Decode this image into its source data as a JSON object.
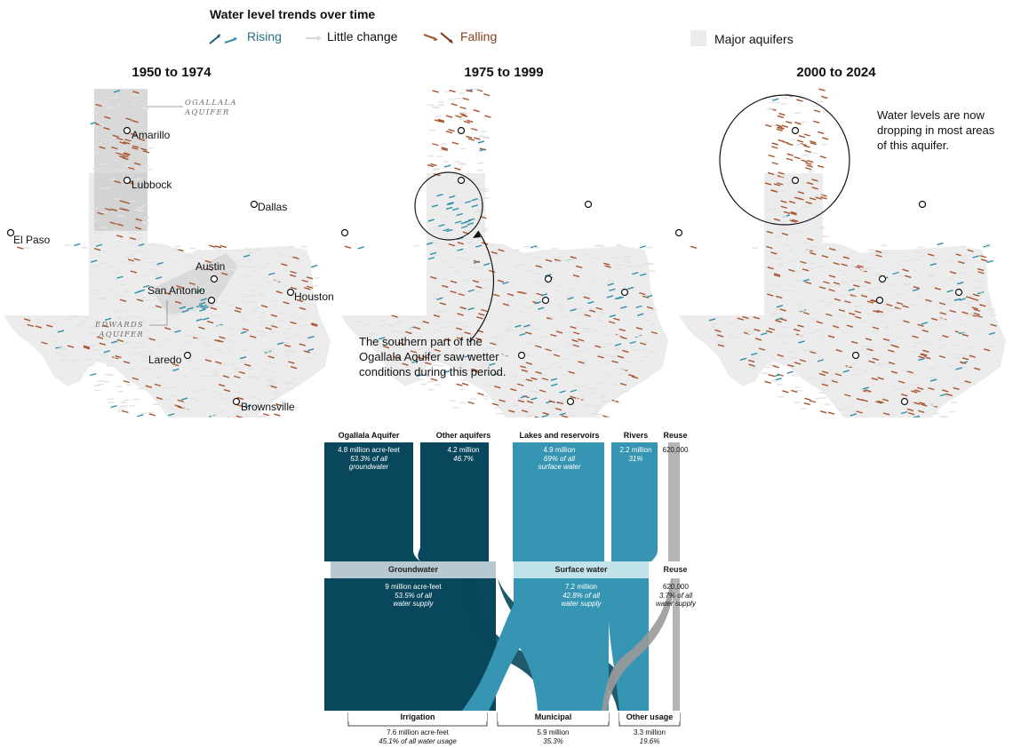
{
  "legend": {
    "title": "Water level trends over time",
    "rising": "Rising",
    "little_change": "Little change",
    "falling": "Falling",
    "major_aquifers": "Major aquifers",
    "colors": {
      "rising": "#2f8fa8",
      "rising_dark": "#1d5f74",
      "falling": "#a9552f",
      "falling_dark": "#7a3519",
      "little_change": "#e3e3e3",
      "aquifer": "#ececec"
    }
  },
  "maps": [
    {
      "title": "1950 to 1974"
    },
    {
      "title": "1975 to 1999"
    },
    {
      "title": "2000 to 2024"
    }
  ],
  "cities": {
    "amarillo": "Amarillo",
    "lubbock": "Lubbock",
    "dallas": "Dallas",
    "el_paso": "El Paso",
    "austin": "Austin",
    "san_antonio": "San Antonio",
    "houston": "Houston",
    "laredo": "Laredo",
    "brownsville": "Brownsville"
  },
  "aquifer_labels": {
    "ogallala_line1": "OGALLALA",
    "ogallala_line2": "AQUIFER",
    "edwards_line1": "EDWARDS",
    "edwards_line2": "AQUIFER"
  },
  "annotations": {
    "southern_ogallala": "The southern part of the Ogallala Aquifer saw wetter conditions during this period.",
    "dropping": "Water levels are now dropping in most areas of this aquifer."
  },
  "sankey": {
    "sources": [
      {
        "name": "Ogallala Aquifer",
        "line1": "4.8 million acre-feet",
        "line2": "53.3% of all",
        "line3": "groundwater"
      },
      {
        "name": "Other aquifers",
        "line1": "4.2 million",
        "line2": "46.7%"
      },
      {
        "name": "Lakes and reservoirs",
        "line1": "4.9 million",
        "line2": "69% of all",
        "line3": "surface water"
      },
      {
        "name": "Rivers",
        "line1": "2.2 million",
        "line2": "31%"
      },
      {
        "name": "Reuse",
        "line1": "620,000"
      }
    ],
    "middle": [
      {
        "name": "Groundwater",
        "line1": "9 million acre-feet",
        "line2": "53.5% of all",
        "line3": "water supply"
      },
      {
        "name": "Surface water",
        "line1": "7.2 million",
        "line2": "42.8% of all",
        "line3": "water supply"
      },
      {
        "name": "Reuse",
        "line1": "620,000",
        "line2": "3.7% of all",
        "line3": "water supply"
      }
    ],
    "uses": [
      {
        "name": "Irrigation",
        "line1": "7.6 million acre-feet",
        "line2": "45.1% of all water usage"
      },
      {
        "name": "Municipal",
        "line1": "5.9 million",
        "line2": "35.3%"
      },
      {
        "name": "Other usage",
        "line1": "3.3 million",
        "line2": "19.6%"
      }
    ],
    "colors": {
      "ground": "#08475c",
      "surface": "#3595b2",
      "reuse": "#b5b5b5",
      "ground_bar": "#b8c8d0",
      "surface_bar": "#c2e2ea"
    }
  }
}
